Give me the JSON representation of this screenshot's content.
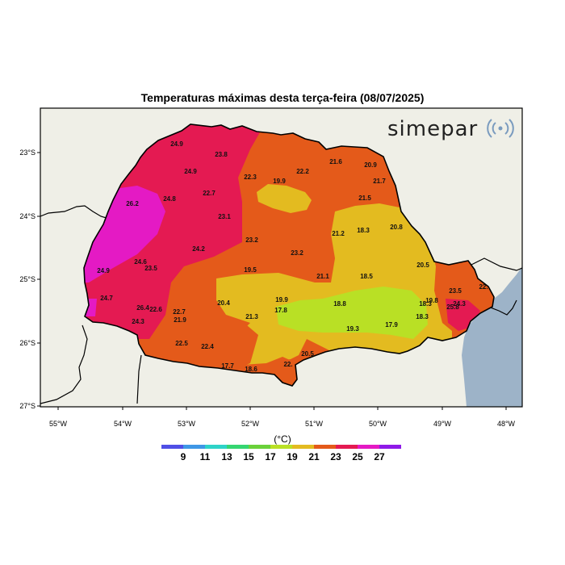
{
  "title": "Temperaturas máximas desta terça-feira (08/07/2025)",
  "logo": {
    "text": "simepar",
    "icon": "signal-waves-icon"
  },
  "colors": {
    "ocean": "#9db3c8",
    "land": "#efefe7",
    "frame": "#000000"
  },
  "lat_ticks": [
    "23°S",
    "24°S",
    "25°S",
    "26°S",
    "27°S"
  ],
  "lon_ticks": [
    "55°W",
    "54°W",
    "53°W",
    "52°W",
    "51°W",
    "50°W",
    "49°W",
    "48°W"
  ],
  "colorbar": {
    "unit": "(°C)",
    "labels": [
      "9",
      "11",
      "13",
      "15",
      "17",
      "19",
      "21",
      "23",
      "25",
      "27"
    ],
    "colors": [
      "#4f4fe6",
      "#3f97e6",
      "#2ed3c8",
      "#35d671",
      "#6ad13a",
      "#b9e025",
      "#e3bb20",
      "#e45a1a",
      "#e41a52",
      "#e41ac4",
      "#8f1ae8"
    ]
  },
  "stations": [
    {
      "v": "24.9"
    },
    {
      "v": "23.8"
    },
    {
      "v": "24.9"
    },
    {
      "v": "22.7"
    },
    {
      "v": "24.8"
    },
    {
      "v": "26.2"
    },
    {
      "v": "23.1"
    },
    {
      "v": "22.3"
    },
    {
      "v": "19.9"
    },
    {
      "v": "22.2"
    },
    {
      "v": "21.6"
    },
    {
      "v": "20.9"
    },
    {
      "v": "21.7"
    },
    {
      "v": "21.5"
    },
    {
      "v": "23.2"
    },
    {
      "v": "24.2"
    },
    {
      "v": "24.6"
    },
    {
      "v": "23.5"
    },
    {
      "v": "24.9"
    },
    {
      "v": "19.5"
    },
    {
      "v": "23.2"
    },
    {
      "v": "21.2"
    },
    {
      "v": "18.3"
    },
    {
      "v": "20.8"
    },
    {
      "v": "21.1"
    },
    {
      "v": "18.5"
    },
    {
      "v": "20.5"
    },
    {
      "v": "23.5"
    },
    {
      "v": "24.7"
    },
    {
      "v": "26.4"
    },
    {
      "v": "22.6"
    },
    {
      "v": "24.3"
    },
    {
      "v": "22.7"
    },
    {
      "v": "21.9"
    },
    {
      "v": "20.4"
    },
    {
      "v": "19.9"
    },
    {
      "v": "17.8"
    },
    {
      "v": "21.3"
    },
    {
      "v": "18.8"
    },
    {
      "v": "18.3"
    },
    {
      "v": "19.8"
    },
    {
      "v": "18.3"
    },
    {
      "v": "19.3"
    },
    {
      "v": "17.9"
    },
    {
      "v": "22.5"
    },
    {
      "v": "22.4"
    },
    {
      "v": "17.7"
    },
    {
      "v": "18.6"
    },
    {
      "v": "22."
    },
    {
      "v": "20.5"
    },
    {
      "v": "25.8"
    },
    {
      "v": "24.3"
    },
    {
      "v": "22."
    }
  ]
}
